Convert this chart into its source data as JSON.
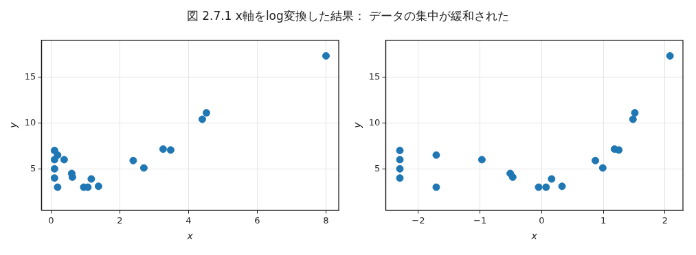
{
  "chart_data": [
    {
      "type": "scatter",
      "title": "図 2.7.1 x軸をlog変換した結果： データの集中が緩和された",
      "xlabel": "x",
      "ylabel": "y",
      "xlim": [
        -0.28,
        8.37
      ],
      "xticks": [
        0,
        2,
        4,
        6,
        8
      ],
      "ylim": [
        0.5,
        19.0
      ],
      "yticks": [
        5,
        10,
        15
      ],
      "grid": true,
      "marker": "circle",
      "series": [
        {
          "color": "#1f77b4",
          "x": [
            0.1,
            0.1,
            0.1,
            0.1,
            0.19,
            0.19,
            0.38,
            0.6,
            0.62,
            0.95,
            1.07,
            1.17,
            1.38,
            2.39,
            2.7,
            3.26,
            3.48,
            4.4,
            4.52,
            8.0
          ],
          "values": [
            7.0,
            6.0,
            5.0,
            4.0,
            6.5,
            3.0,
            6.0,
            4.5,
            4.1,
            3.0,
            3.0,
            3.9,
            3.1,
            5.9,
            5.1,
            7.15,
            7.05,
            10.4,
            11.1,
            17.3
          ]
        }
      ]
    },
    {
      "type": "scatter",
      "xlabel": "x",
      "ylabel": "y",
      "xlim": [
        -2.53,
        2.29
      ],
      "xticks": [
        -2,
        -1,
        0,
        1,
        2
      ],
      "ylim": [
        0.5,
        19.0
      ],
      "yticks": [
        5,
        10,
        15
      ],
      "grid": true,
      "marker": "circle",
      "series": [
        {
          "color": "#1f77b4",
          "x": [
            -2.3,
            -2.3,
            -2.3,
            -2.3,
            -1.71,
            -1.71,
            -0.97,
            -0.51,
            -0.47,
            -0.05,
            0.07,
            0.16,
            0.33,
            0.87,
            0.99,
            1.18,
            1.25,
            1.48,
            1.51,
            2.08
          ],
          "values": [
            7.0,
            6.0,
            5.0,
            4.0,
            6.5,
            3.0,
            6.0,
            4.5,
            4.1,
            3.0,
            3.0,
            3.9,
            3.1,
            5.9,
            5.1,
            7.15,
            7.05,
            10.4,
            11.1,
            17.3
          ]
        }
      ]
    }
  ]
}
